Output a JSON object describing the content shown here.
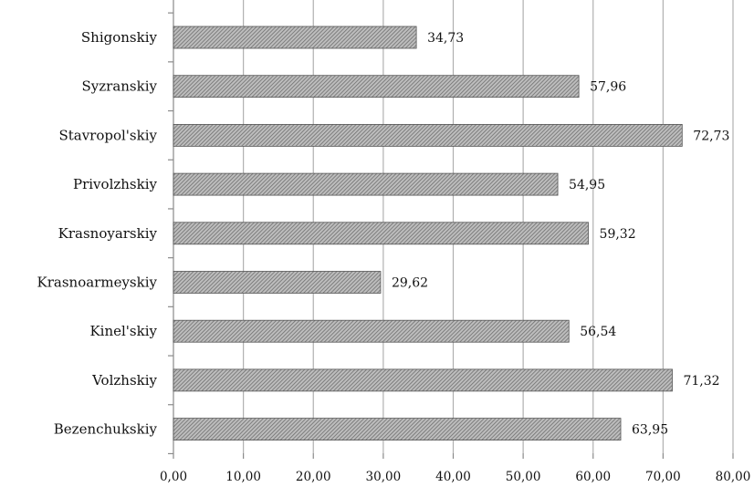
{
  "chart_data": {
    "type": "bar",
    "orientation": "horizontal",
    "categories": [
      "Shigonskiy",
      "Syzranskiy",
      "Stavropol'skiy",
      "Privolzhskiy",
      "Krasnoyarskiy",
      "Krasnoarmeyskiy",
      "Kinel'skiy",
      "Volzhskiy",
      "Bezenchukskiy"
    ],
    "values": [
      34.73,
      57.96,
      72.73,
      54.95,
      59.32,
      29.62,
      56.54,
      71.32,
      63.95
    ],
    "value_labels": [
      "34,73",
      "57,96",
      "72,73",
      "54,95",
      "59,32",
      "29,62",
      "56,54",
      "71,32",
      "63,95"
    ],
    "x_ticks": [
      0,
      10,
      20,
      30,
      40,
      50,
      60,
      70,
      80
    ],
    "x_tick_labels": [
      "0,00",
      "10,00",
      "20,00",
      "30,00",
      "40,00",
      "50,00",
      "60,00",
      "70,00",
      "80,00"
    ],
    "xlim": [
      0,
      80
    ],
    "grid": "vertical",
    "legend": "none",
    "bar_fill": "hatched-gray",
    "colors": {
      "bar_base": "#bdbdbd",
      "bar_hatch": "#6e6e6e",
      "bar_edge": "#555555",
      "grid": "#b0b0b0",
      "axis": "#8a8a8a"
    }
  }
}
